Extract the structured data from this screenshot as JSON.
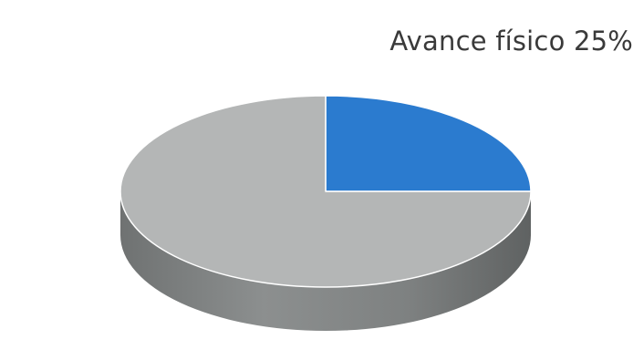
{
  "chart_data": {
    "type": "pie",
    "title": "Avance físico 25%",
    "slices": [
      {
        "name": "",
        "value": 25,
        "color": "#2b7bcf"
      },
      {
        "name": "",
        "value": 75,
        "color": "#b4b6b6"
      }
    ],
    "start_angle_deg": 90,
    "direction": "clockwise",
    "style_3d": true,
    "side_color": "#8a8d8d"
  }
}
